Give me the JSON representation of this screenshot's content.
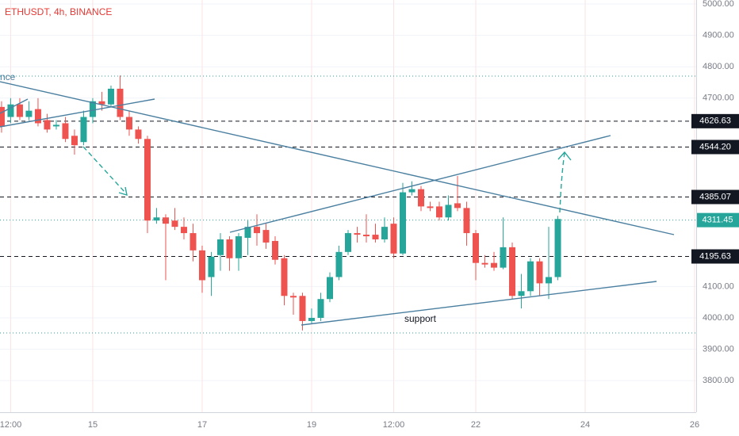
{
  "chart_data": {
    "type": "candlestick",
    "title": "ETHUSDT, 4h, BINANCE",
    "x": [
      -10,
      -9,
      -8,
      -7,
      -6,
      -5,
      -4,
      -3,
      -2,
      -1,
      0,
      1,
      2,
      3,
      4,
      5,
      6,
      7,
      8,
      9,
      10,
      11,
      12,
      13,
      14,
      15,
      16,
      17,
      18,
      19,
      20,
      21,
      22,
      23,
      24,
      25,
      26,
      27,
      28,
      29,
      30,
      31,
      32,
      33,
      34,
      35,
      36,
      37,
      38,
      39,
      40,
      41,
      42,
      43,
      44,
      45,
      46,
      47,
      48,
      49,
      50,
      51
    ],
    "open": [
      4672,
      4640,
      4680,
      4640,
      4665,
      4630,
      4610,
      4620,
      4580,
      4560,
      4640,
      4690,
      4680,
      4730,
      4640,
      4600,
      4570,
      4310,
      4320,
      4310,
      4290,
      4270,
      4215,
      4130,
      4200,
      4250,
      4190,
      4255,
      4290,
      4280,
      4245,
      4190,
      4070,
      4070,
      3990,
      4000,
      4060,
      4130,
      4210,
      4270,
      4265,
      4265,
      4250,
      4300,
      4205,
      4400,
      4410,
      4355,
      4355,
      4320,
      4365,
      4350,
      4270,
      4175,
      4175,
      4160,
      4225,
      4070,
      4085,
      4180,
      4110,
      4130
    ],
    "high": [
      4690,
      4700,
      4700,
      4690,
      4700,
      4650,
      4630,
      4640,
      4600,
      4660,
      4700,
      4720,
      4740,
      4772,
      4660,
      4610,
      4580,
      4350,
      4330,
      4350,
      4320,
      4300,
      4230,
      4210,
      4270,
      4260,
      4270,
      4310,
      4330,
      4300,
      4260,
      4200,
      4080,
      4080,
      4030,
      4080,
      4145,
      4230,
      4280,
      4290,
      4330,
      4300,
      4320,
      4320,
      4430,
      4435,
      4420,
      4370,
      4370,
      4390,
      4452,
      4370,
      4280,
      4200,
      4210,
      4320,
      4240,
      4140,
      4190,
      4190,
      4290,
      4325
    ],
    "low": [
      4590,
      4620,
      4630,
      4630,
      4610,
      4590,
      4600,
      4560,
      4520,
      4550,
      4620,
      4660,
      4670,
      4630,
      4580,
      4555,
      4270,
      4300,
      4120,
      4280,
      4250,
      4180,
      4080,
      4070,
      4150,
      4150,
      4150,
      4200,
      4230,
      4220,
      4170,
      4040,
      4010,
      3960,
      3980,
      3990,
      4050,
      4120,
      4200,
      4240,
      4240,
      4240,
      4240,
      4190,
      4200,
      4390,
      4340,
      4340,
      4310,
      4310,
      4340,
      4230,
      4120,
      4160,
      4150,
      4155,
      4060,
      4030,
      4070,
      4070,
      4060,
      4120
    ],
    "close": [
      4609,
      4680,
      4640,
      4660,
      4620,
      4600,
      4615,
      4570,
      4550,
      4640,
      4690,
      4680,
      4730,
      4640,
      4600,
      4570,
      4310,
      4320,
      4300,
      4290,
      4270,
      4215,
      4120,
      4195,
      4250,
      4190,
      4260,
      4290,
      4270,
      4240,
      4185,
      4070,
      4065,
      3990,
      4000,
      4060,
      4130,
      4210,
      4270,
      4265,
      4260,
      4250,
      4290,
      4205,
      4400,
      4410,
      4355,
      4350,
      4320,
      4360,
      4350,
      4270,
      4175,
      4170,
      4160,
      4225,
      4070,
      4085,
      4180,
      4110,
      4130,
      4315
    ],
    "up_color": "#26a69a",
    "down_color": "#ef5350",
    "xlim": [
      -10.17,
      66.17
    ],
    "xticks": [
      {
        "value": -9,
        "label": "12:00"
      },
      {
        "value": 0,
        "label": "15"
      },
      {
        "value": 12,
        "label": "17"
      },
      {
        "value": 24,
        "label": "19"
      },
      {
        "value": 33,
        "label": "12:00"
      },
      {
        "value": 42,
        "label": "22"
      },
      {
        "value": 54,
        "label": "24"
      },
      {
        "value": 66,
        "label": "26"
      }
    ],
    "ylim": [
      3704.5,
      5012.6
    ],
    "yticks": [
      {
        "value": 5000,
        "label": "5000.00"
      },
      {
        "value": 4900,
        "label": "4900.00"
      },
      {
        "value": 4800,
        "label": "4800.00"
      },
      {
        "value": 4700,
        "label": "4700.00"
      },
      {
        "value": 4100,
        "label": "4100.00"
      },
      {
        "value": 4000,
        "label": "4000.00"
      },
      {
        "value": 3900,
        "label": "3900.00"
      },
      {
        "value": 3800,
        "label": "3800.00"
      }
    ],
    "levels": [
      {
        "value": 4626.63,
        "label": "4626.63"
      },
      {
        "value": 4544.2,
        "label": "4544.20"
      },
      {
        "value": 4385.07,
        "label": "4385.07"
      },
      {
        "value": 4195.63,
        "label": "4195.63"
      }
    ],
    "last_price": {
      "value": 4311.45,
      "label": "4311.45"
    },
    "annotations": [
      "nce",
      "support"
    ],
    "grid": true
  }
}
